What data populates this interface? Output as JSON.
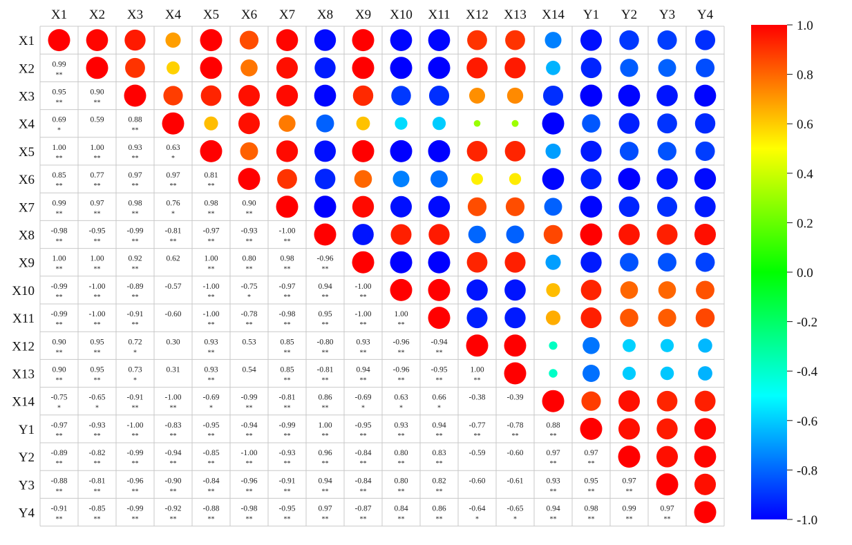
{
  "chart_data": {
    "type": "heatmap",
    "title": "",
    "variables": [
      "X1",
      "X2",
      "X3",
      "X4",
      "X5",
      "X6",
      "X7",
      "X8",
      "X9",
      "X10",
      "X11",
      "X12",
      "X13",
      "X14",
      "Y1",
      "Y2",
      "Y3",
      "Y4"
    ],
    "lower_triangle": [
      [],
      [
        {
          "r": 0.99,
          "sig": "**"
        }
      ],
      [
        {
          "r": 0.95,
          "sig": "**"
        },
        {
          "r": 0.9,
          "sig": "**"
        }
      ],
      [
        {
          "r": 0.69,
          "sig": "*"
        },
        {
          "r": 0.59,
          "sig": ""
        },
        {
          "r": 0.88,
          "sig": "**"
        }
      ],
      [
        {
          "r": 1.0,
          "sig": "**"
        },
        {
          "r": 1.0,
          "sig": "**"
        },
        {
          "r": 0.93,
          "sig": "**"
        },
        {
          "r": 0.63,
          "sig": "*"
        }
      ],
      [
        {
          "r": 0.85,
          "sig": "**"
        },
        {
          "r": 0.77,
          "sig": "**"
        },
        {
          "r": 0.97,
          "sig": "**"
        },
        {
          "r": 0.97,
          "sig": "**"
        },
        {
          "r": 0.81,
          "sig": "**"
        }
      ],
      [
        {
          "r": 0.99,
          "sig": "**"
        },
        {
          "r": 0.97,
          "sig": "**"
        },
        {
          "r": 0.98,
          "sig": "**"
        },
        {
          "r": 0.76,
          "sig": "*"
        },
        {
          "r": 0.98,
          "sig": "**"
        },
        {
          "r": 0.9,
          "sig": "**"
        }
      ],
      [
        {
          "r": -0.98,
          "sig": "**"
        },
        {
          "r": -0.95,
          "sig": "**"
        },
        {
          "r": -0.99,
          "sig": "**"
        },
        {
          "r": -0.81,
          "sig": "**"
        },
        {
          "r": -0.97,
          "sig": "**"
        },
        {
          "r": -0.93,
          "sig": "**"
        },
        {
          "r": -1.0,
          "sig": "**"
        }
      ],
      [
        {
          "r": 1.0,
          "sig": "**"
        },
        {
          "r": 1.0,
          "sig": "**"
        },
        {
          "r": 0.92,
          "sig": "**"
        },
        {
          "r": 0.62,
          "sig": ""
        },
        {
          "r": 1.0,
          "sig": "**"
        },
        {
          "r": 0.8,
          "sig": "**"
        },
        {
          "r": 0.98,
          "sig": "**"
        },
        {
          "r": -0.96,
          "sig": "**"
        }
      ],
      [
        {
          "r": -0.99,
          "sig": "**"
        },
        {
          "r": -1.0,
          "sig": "**"
        },
        {
          "r": -0.89,
          "sig": "**"
        },
        {
          "r": -0.57,
          "sig": ""
        },
        {
          "r": -1.0,
          "sig": "**"
        },
        {
          "r": -0.75,
          "sig": "*"
        },
        {
          "r": -0.97,
          "sig": "**"
        },
        {
          "r": 0.94,
          "sig": "**"
        },
        {
          "r": -1.0,
          "sig": "**"
        }
      ],
      [
        {
          "r": -0.99,
          "sig": "**"
        },
        {
          "r": -1.0,
          "sig": "**"
        },
        {
          "r": -0.91,
          "sig": "**"
        },
        {
          "r": -0.6,
          "sig": ""
        },
        {
          "r": -1.0,
          "sig": "**"
        },
        {
          "r": -0.78,
          "sig": "**"
        },
        {
          "r": -0.98,
          "sig": "**"
        },
        {
          "r": 0.95,
          "sig": "**"
        },
        {
          "r": -1.0,
          "sig": "**"
        },
        {
          "r": 1.0,
          "sig": "**"
        }
      ],
      [
        {
          "r": 0.9,
          "sig": "**"
        },
        {
          "r": 0.95,
          "sig": "**"
        },
        {
          "r": 0.72,
          "sig": "*"
        },
        {
          "r": 0.3,
          "sig": ""
        },
        {
          "r": 0.93,
          "sig": "**"
        },
        {
          "r": 0.53,
          "sig": ""
        },
        {
          "r": 0.85,
          "sig": "**"
        },
        {
          "r": -0.8,
          "sig": "**"
        },
        {
          "r": 0.93,
          "sig": "**"
        },
        {
          "r": -0.96,
          "sig": "**"
        },
        {
          "r": -0.94,
          "sig": "**"
        }
      ],
      [
        {
          "r": 0.9,
          "sig": "**"
        },
        {
          "r": 0.95,
          "sig": "**"
        },
        {
          "r": 0.73,
          "sig": "*"
        },
        {
          "r": 0.31,
          "sig": ""
        },
        {
          "r": 0.93,
          "sig": "**"
        },
        {
          "r": 0.54,
          "sig": ""
        },
        {
          "r": 0.85,
          "sig": "**"
        },
        {
          "r": -0.81,
          "sig": "**"
        },
        {
          "r": 0.94,
          "sig": "**"
        },
        {
          "r": -0.96,
          "sig": "**"
        },
        {
          "r": -0.95,
          "sig": "**"
        },
        {
          "r": 1.0,
          "sig": "**"
        }
      ],
      [
        {
          "r": -0.75,
          "sig": "*"
        },
        {
          "r": -0.65,
          "sig": "*"
        },
        {
          "r": -0.91,
          "sig": "**"
        },
        {
          "r": -1.0,
          "sig": "**"
        },
        {
          "r": -0.69,
          "sig": "*"
        },
        {
          "r": -0.99,
          "sig": "**"
        },
        {
          "r": -0.81,
          "sig": "**"
        },
        {
          "r": 0.86,
          "sig": "**"
        },
        {
          "r": -0.69,
          "sig": "*"
        },
        {
          "r": 0.63,
          "sig": "*"
        },
        {
          "r": 0.66,
          "sig": "*"
        },
        {
          "r": -0.38,
          "sig": ""
        },
        {
          "r": -0.39,
          "sig": ""
        }
      ],
      [
        {
          "r": -0.97,
          "sig": "**"
        },
        {
          "r": -0.93,
          "sig": "**"
        },
        {
          "r": -1.0,
          "sig": "**"
        },
        {
          "r": -0.83,
          "sig": "**"
        },
        {
          "r": -0.95,
          "sig": "**"
        },
        {
          "r": -0.94,
          "sig": "**"
        },
        {
          "r": -0.99,
          "sig": "**"
        },
        {
          "r": 1.0,
          "sig": "**"
        },
        {
          "r": -0.95,
          "sig": "**"
        },
        {
          "r": 0.93,
          "sig": "**"
        },
        {
          "r": 0.94,
          "sig": "**"
        },
        {
          "r": -0.77,
          "sig": "**"
        },
        {
          "r": -0.78,
          "sig": "**"
        },
        {
          "r": 0.88,
          "sig": "**"
        }
      ],
      [
        {
          "r": -0.89,
          "sig": "**"
        },
        {
          "r": -0.82,
          "sig": "**"
        },
        {
          "r": -0.99,
          "sig": "**"
        },
        {
          "r": -0.94,
          "sig": "**"
        },
        {
          "r": -0.85,
          "sig": "**"
        },
        {
          "r": -1.0,
          "sig": "**"
        },
        {
          "r": -0.93,
          "sig": "**"
        },
        {
          "r": 0.96,
          "sig": "**"
        },
        {
          "r": -0.84,
          "sig": "**"
        },
        {
          "r": 0.8,
          "sig": "**"
        },
        {
          "r": 0.83,
          "sig": "**"
        },
        {
          "r": -0.59,
          "sig": ""
        },
        {
          "r": -0.6,
          "sig": ""
        },
        {
          "r": 0.97,
          "sig": "**"
        },
        {
          "r": 0.97,
          "sig": "**"
        }
      ],
      [
        {
          "r": -0.88,
          "sig": "**"
        },
        {
          "r": -0.81,
          "sig": "**"
        },
        {
          "r": -0.96,
          "sig": "**"
        },
        {
          "r": -0.9,
          "sig": "**"
        },
        {
          "r": -0.84,
          "sig": "**"
        },
        {
          "r": -0.96,
          "sig": "**"
        },
        {
          "r": -0.91,
          "sig": "**"
        },
        {
          "r": 0.94,
          "sig": "**"
        },
        {
          "r": -0.84,
          "sig": "**"
        },
        {
          "r": 0.8,
          "sig": "**"
        },
        {
          "r": 0.82,
          "sig": "**"
        },
        {
          "r": -0.6,
          "sig": ""
        },
        {
          "r": -0.61,
          "sig": ""
        },
        {
          "r": 0.93,
          "sig": "**"
        },
        {
          "r": 0.95,
          "sig": "**"
        },
        {
          "r": 0.97,
          "sig": "**"
        }
      ],
      [
        {
          "r": -0.91,
          "sig": "**"
        },
        {
          "r": -0.85,
          "sig": "**"
        },
        {
          "r": -0.99,
          "sig": "**"
        },
        {
          "r": -0.92,
          "sig": "**"
        },
        {
          "r": -0.88,
          "sig": "**"
        },
        {
          "r": -0.98,
          "sig": "**"
        },
        {
          "r": -0.95,
          "sig": "**"
        },
        {
          "r": 0.97,
          "sig": "**"
        },
        {
          "r": -0.87,
          "sig": "**"
        },
        {
          "r": 0.84,
          "sig": "**"
        },
        {
          "r": 0.86,
          "sig": "**"
        },
        {
          "r": -0.64,
          "sig": "*"
        },
        {
          "r": -0.65,
          "sig": "*"
        },
        {
          "r": 0.94,
          "sig": "**"
        },
        {
          "r": 0.98,
          "sig": "**"
        },
        {
          "r": 0.99,
          "sig": "**"
        },
        {
          "r": 0.97,
          "sig": "**"
        }
      ]
    ],
    "upper_triangle_shape": "circle",
    "diagonal": 1.0,
    "color_range": [
      -1.0,
      1.0
    ],
    "colorbar_ticks": [
      "1.0",
      "0.8",
      "0.6",
      "0.4",
      "0.2",
      "0.0",
      "-0.2",
      "-0.4",
      "-0.6",
      "-0.8",
      "-1.0"
    ],
    "colorscale": [
      "#0000ff",
      "#00ffff",
      "#00ff00",
      "#ffff00",
      "#ff0000"
    ],
    "legend_position": "right",
    "grid": true
  }
}
